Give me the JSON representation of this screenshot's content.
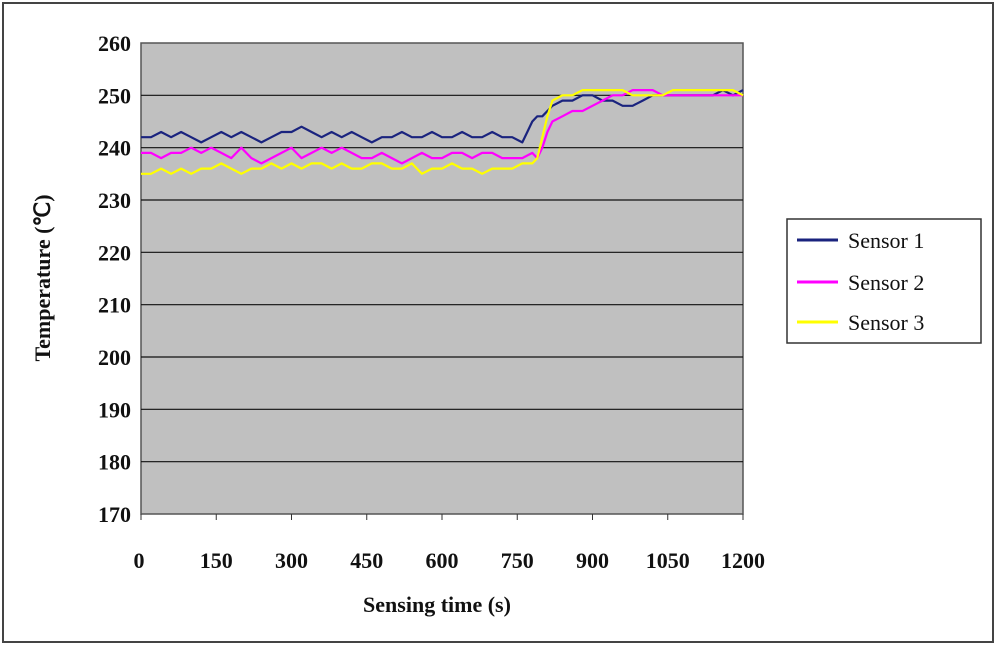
{
  "chart_data": {
    "type": "line",
    "title": "",
    "xlabel": "Sensing time (s)",
    "ylabel": "Temperature (℃)",
    "xlim": [
      0,
      1200
    ],
    "ylim": [
      170,
      260
    ],
    "x_ticks": [
      "0",
      "150",
      "300",
      "450",
      "600",
      "750",
      "900",
      "1050",
      "1200"
    ],
    "y_ticks": [
      "170",
      "180",
      "190",
      "200",
      "210",
      "220",
      "230",
      "240",
      "250",
      "260"
    ],
    "grid": "horizontal",
    "plot_background": "#c0c0c0",
    "legend_position": "right",
    "series": [
      {
        "name": "Sensor 1",
        "color": "#1a237e",
        "x": [
          0,
          20,
          40,
          60,
          80,
          100,
          120,
          140,
          160,
          180,
          200,
          220,
          240,
          260,
          280,
          300,
          320,
          340,
          360,
          380,
          400,
          420,
          440,
          460,
          480,
          500,
          520,
          540,
          560,
          580,
          600,
          620,
          640,
          660,
          680,
          700,
          720,
          740,
          760,
          770,
          780,
          790,
          800,
          810,
          820,
          840,
          860,
          880,
          900,
          920,
          940,
          960,
          980,
          1000,
          1020,
          1040,
          1060,
          1080,
          1100,
          1120,
          1140,
          1160,
          1180,
          1200
        ],
        "values": [
          242,
          242,
          243,
          242,
          243,
          242,
          241,
          242,
          243,
          242,
          243,
          242,
          241,
          242,
          243,
          243,
          244,
          243,
          242,
          243,
          242,
          243,
          242,
          241,
          242,
          242,
          243,
          242,
          242,
          243,
          242,
          242,
          243,
          242,
          242,
          243,
          242,
          242,
          241,
          243,
          245,
          246,
          246,
          247,
          248,
          249,
          249,
          250,
          250,
          249,
          249,
          248,
          248,
          249,
          250,
          250,
          250,
          250,
          250,
          250,
          250,
          251,
          250,
          251
        ]
      },
      {
        "name": "Sensor 2",
        "color": "#ff00ff",
        "x": [
          0,
          20,
          40,
          60,
          80,
          100,
          120,
          140,
          160,
          180,
          200,
          220,
          240,
          260,
          280,
          300,
          320,
          340,
          360,
          380,
          400,
          420,
          440,
          460,
          480,
          500,
          520,
          540,
          560,
          580,
          600,
          620,
          640,
          660,
          680,
          700,
          720,
          740,
          760,
          780,
          790,
          800,
          810,
          820,
          840,
          860,
          880,
          900,
          920,
          940,
          960,
          980,
          1000,
          1020,
          1040,
          1060,
          1080,
          1100,
          1120,
          1140,
          1160,
          1180,
          1200
        ],
        "values": [
          239,
          239,
          238,
          239,
          239,
          240,
          239,
          240,
          239,
          238,
          240,
          238,
          237,
          238,
          239,
          240,
          238,
          239,
          240,
          239,
          240,
          239,
          238,
          238,
          239,
          238,
          237,
          238,
          239,
          238,
          238,
          239,
          239,
          238,
          239,
          239,
          238,
          238,
          238,
          239,
          238,
          240,
          243,
          245,
          246,
          247,
          247,
          248,
          249,
          250,
          250,
          251,
          251,
          251,
          250,
          250,
          250,
          250,
          250,
          250,
          250,
          250,
          250
        ]
      },
      {
        "name": "Sensor 3",
        "color": "#ffff00",
        "x": [
          0,
          20,
          40,
          60,
          80,
          100,
          120,
          140,
          160,
          180,
          200,
          220,
          240,
          260,
          280,
          300,
          320,
          340,
          360,
          380,
          400,
          420,
          440,
          460,
          480,
          500,
          520,
          540,
          560,
          580,
          600,
          620,
          640,
          660,
          680,
          700,
          720,
          740,
          760,
          780,
          790,
          800,
          810,
          820,
          840,
          860,
          880,
          900,
          920,
          940,
          960,
          980,
          1000,
          1020,
          1040,
          1060,
          1080,
          1100,
          1120,
          1140,
          1160,
          1180,
          1200
        ],
        "values": [
          235,
          235,
          236,
          235,
          236,
          235,
          236,
          236,
          237,
          236,
          235,
          236,
          236,
          237,
          236,
          237,
          236,
          237,
          237,
          236,
          237,
          236,
          236,
          237,
          237,
          236,
          236,
          237,
          235,
          236,
          236,
          237,
          236,
          236,
          235,
          236,
          236,
          236,
          237,
          237,
          238,
          242,
          246,
          249,
          250,
          250,
          251,
          251,
          251,
          251,
          251,
          250,
          250,
          250,
          250,
          251,
          251,
          251,
          251,
          251,
          251,
          251,
          250
        ]
      }
    ]
  }
}
